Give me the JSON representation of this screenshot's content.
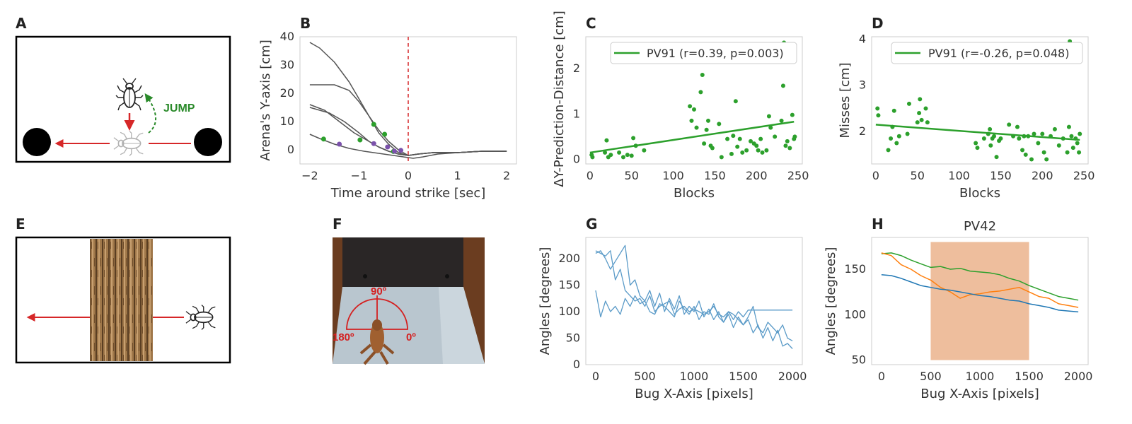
{
  "panels": {
    "A": {
      "letter": "A",
      "jump_label": "JUMP"
    },
    "B": {
      "letter": "B"
    },
    "C": {
      "letter": "C"
    },
    "D": {
      "letter": "D"
    },
    "E": {
      "letter": "E"
    },
    "F": {
      "letter": "F",
      "labels": {
        "top": "90º",
        "left": "180º",
        "right": "0º"
      }
    },
    "G": {
      "letter": "G"
    },
    "H": {
      "letter": "H"
    }
  },
  "colors": {
    "green": "#2ca02c",
    "blue": "#1f77b4",
    "orange": "#ff7f0e",
    "red": "#d62728",
    "purple": "#7b52ab",
    "gray": "#555555",
    "band": "#e8a87c"
  },
  "chart_data": [
    {
      "id": "B",
      "type": "line",
      "xlabel": "Time around strike [sec]",
      "ylabel": "Arena's Y-axis [cm]",
      "xlim": [
        -2.2,
        2.2
      ],
      "ylim": [
        -5,
        40
      ],
      "xticks": [
        -2,
        -1,
        0,
        1,
        2
      ],
      "yticks": [
        0,
        10,
        20,
        30,
        40
      ],
      "vline_x": 0,
      "series": [
        {
          "x": [
            -2,
            -1.8,
            -1.5,
            -1.2,
            -1,
            -0.8,
            -0.6,
            -0.4,
            -0.2,
            0,
            0.2,
            0.5,
            1,
            1.5,
            2
          ],
          "y": [
            38,
            36,
            31,
            24,
            18,
            12,
            6,
            2,
            -1,
            -2,
            -1.5,
            -1,
            -1,
            -0.5,
            -0.5
          ]
        },
        {
          "x": [
            -2,
            -1.5,
            -1.2,
            -1,
            -0.8,
            -0.6,
            -0.4,
            -0.2,
            0,
            0.2,
            0.5,
            1,
            1.5,
            2
          ],
          "y": [
            23,
            23,
            21,
            17,
            12,
            7,
            3,
            0,
            -2,
            -1.5,
            -1,
            -1,
            -0.5,
            -0.5
          ]
        },
        {
          "x": [
            -2,
            -1.7,
            -1.4,
            -1.1,
            -0.8,
            -0.6,
            -0.4,
            -0.2,
            0,
            0.2,
            0.5,
            1,
            1.5,
            2
          ],
          "y": [
            16,
            14,
            10,
            6,
            3,
            1,
            -0.5,
            -1.5,
            -2,
            -1.5,
            -1,
            -1,
            -0.5,
            -0.5
          ]
        },
        {
          "x": [
            -2,
            -1.6,
            -1.3,
            -1,
            -0.8,
            -0.6,
            -0.4,
            -0.2,
            0,
            0.2,
            0.5,
            1,
            1.5,
            2
          ],
          "y": [
            15,
            13,
            10,
            6,
            3,
            1,
            -0.5,
            -1.5,
            -2,
            -1.5,
            -1,
            -1,
            -0.5,
            -0.5
          ]
        },
        {
          "x": [
            -2,
            -1.8,
            -1.5,
            -1.2,
            -0.9,
            -0.7,
            -0.5,
            -0.3,
            -0.1,
            0.1,
            0.3,
            0.6,
            1,
            1.5,
            2
          ],
          "y": [
            5.5,
            4,
            2,
            0.5,
            -0.5,
            -1,
            -1.5,
            -2,
            -2.5,
            -3,
            -2.5,
            -1.5,
            -1,
            -0.5,
            -0.5
          ]
        }
      ],
      "green_points": [
        {
          "x": -1.72,
          "y": 3.8
        },
        {
          "x": -0.98,
          "y": 3.5
        },
        {
          "x": -0.7,
          "y": 9
        },
        {
          "x": -0.48,
          "y": 5.5
        },
        {
          "x": -0.3,
          "y": -0.6
        }
      ],
      "purple_points": [
        {
          "x": -1.4,
          "y": 2
        },
        {
          "x": -0.7,
          "y": 2.2
        },
        {
          "x": -0.42,
          "y": 1
        },
        {
          "x": -0.28,
          "y": -0.5
        },
        {
          "x": -0.15,
          "y": -0.2
        }
      ]
    },
    {
      "id": "C",
      "type": "scatter",
      "xlabel": "Blocks",
      "ylabel": "ΔY-Prediction-Distance [cm]",
      "xlim": [
        -5,
        255
      ],
      "ylim": [
        -0.1,
        2.7
      ],
      "xticks": [
        0,
        50,
        100,
        150,
        200,
        250
      ],
      "yticks": [
        0,
        1,
        2
      ],
      "legend": "PV91 (r=0.39, p=0.003)",
      "legend_loc": "upper right",
      "fit": {
        "x": [
          0,
          245
        ],
        "y": [
          0.15,
          0.83
        ]
      },
      "points": [
        [
          2,
          0.1
        ],
        [
          3,
          0.05
        ],
        [
          18,
          0.15
        ],
        [
          20,
          0.42
        ],
        [
          22,
          0.05
        ],
        [
          25,
          0.1
        ],
        [
          35,
          0.15
        ],
        [
          40,
          0.05
        ],
        [
          45,
          0.1
        ],
        [
          50,
          0.08
        ],
        [
          52,
          0.47
        ],
        [
          55,
          0.3
        ],
        [
          65,
          0.2
        ],
        [
          120,
          1.17
        ],
        [
          122,
          0.85
        ],
        [
          125,
          1.1
        ],
        [
          128,
          0.7
        ],
        [
          133,
          1.48
        ],
        [
          135,
          1.86
        ],
        [
          137,
          0.35
        ],
        [
          140,
          0.65
        ],
        [
          142,
          0.85
        ],
        [
          145,
          0.3
        ],
        [
          147,
          0.25
        ],
        [
          155,
          0.78
        ],
        [
          158,
          0.05
        ],
        [
          165,
          0.45
        ],
        [
          170,
          0.12
        ],
        [
          172,
          0.52
        ],
        [
          175,
          1.28
        ],
        [
          177,
          0.28
        ],
        [
          180,
          0.45
        ],
        [
          183,
          0.15
        ],
        [
          188,
          0.2
        ],
        [
          193,
          0.4
        ],
        [
          197,
          0.35
        ],
        [
          200,
          0.3
        ],
        [
          202,
          0.2
        ],
        [
          205,
          0.45
        ],
        [
          207,
          0.15
        ],
        [
          212,
          0.2
        ],
        [
          215,
          0.95
        ],
        [
          217,
          0.7
        ],
        [
          222,
          0.5
        ],
        [
          230,
          0.85
        ],
        [
          232,
          1.62
        ],
        [
          233,
          2.57
        ],
        [
          235,
          0.3
        ],
        [
          237,
          0.4
        ],
        [
          240,
          0.25
        ],
        [
          243,
          0.98
        ],
        [
          245,
          0.45
        ],
        [
          246,
          0.5
        ]
      ]
    },
    {
      "id": "D",
      "type": "scatter",
      "xlabel": "Blocks",
      "ylabel": "Misses [cm]",
      "xlim": [
        -5,
        255
      ],
      "ylim": [
        1.3,
        4.05
      ],
      "xticks": [
        0,
        50,
        100,
        150,
        200,
        250
      ],
      "yticks": [
        2,
        3,
        4
      ],
      "legend": "PV91 (r=-0.26, p=0.048)",
      "legend_loc": "upper right",
      "fit": {
        "x": [
          0,
          245
        ],
        "y": [
          2.15,
          1.82
        ]
      },
      "points": [
        [
          2,
          2.5
        ],
        [
          3,
          2.35
        ],
        [
          15,
          1.6
        ],
        [
          18,
          1.85
        ],
        [
          20,
          2.1
        ],
        [
          22,
          2.45
        ],
        [
          25,
          1.75
        ],
        [
          28,
          1.9
        ],
        [
          38,
          1.95
        ],
        [
          40,
          2.6
        ],
        [
          50,
          2.2
        ],
        [
          52,
          2.4
        ],
        [
          53,
          2.7
        ],
        [
          55,
          2.25
        ],
        [
          60,
          2.5
        ],
        [
          62,
          2.2
        ],
        [
          120,
          1.75
        ],
        [
          122,
          1.65
        ],
        [
          130,
          1.85
        ],
        [
          135,
          1.95
        ],
        [
          137,
          2.05
        ],
        [
          138,
          1.7
        ],
        [
          140,
          1.85
        ],
        [
          142,
          1.9
        ],
        [
          145,
          1.45
        ],
        [
          148,
          1.8
        ],
        [
          150,
          1.85
        ],
        [
          160,
          2.15
        ],
        [
          165,
          1.9
        ],
        [
          170,
          2.1
        ],
        [
          172,
          1.85
        ],
        [
          176,
          1.6
        ],
        [
          178,
          1.9
        ],
        [
          180,
          1.5
        ],
        [
          183,
          1.9
        ],
        [
          187,
          1.4
        ],
        [
          190,
          1.95
        ],
        [
          195,
          1.75
        ],
        [
          200,
          1.95
        ],
        [
          202,
          1.55
        ],
        [
          205,
          1.4
        ],
        [
          210,
          1.9
        ],
        [
          215,
          2.05
        ],
        [
          220,
          1.7
        ],
        [
          225,
          1.85
        ],
        [
          230,
          1.55
        ],
        [
          232,
          2.1
        ],
        [
          233,
          3.95
        ],
        [
          235,
          1.9
        ],
        [
          237,
          1.65
        ],
        [
          240,
          1.85
        ],
        [
          242,
          1.75
        ],
        [
          244,
          1.55
        ],
        [
          245,
          1.95
        ]
      ]
    },
    {
      "id": "G",
      "type": "line",
      "xlabel": "Bug X-Axis [pixels]",
      "ylabel": "Angles [degrees]",
      "xlim": [
        -100,
        2100
      ],
      "ylim": [
        0,
        240
      ],
      "xticks": [
        0,
        500,
        1000,
        1500,
        2000
      ],
      "yticks": [
        0,
        50,
        100,
        150,
        200
      ],
      "series": [
        {
          "x": [
            0,
            50,
            100,
            150,
            200,
            250,
            300,
            350,
            400,
            450,
            500,
            550,
            600,
            650,
            700,
            750,
            800,
            850,
            900,
            950,
            1000,
            1050,
            1100,
            1150,
            1200,
            1250,
            1300,
            1350,
            1400,
            1450,
            1500,
            1550,
            1600,
            1650,
            1700,
            1750,
            1800,
            1850,
            1900,
            1950,
            2000
          ],
          "y": [
            215,
            210,
            205,
            215,
            160,
            180,
            140,
            130,
            120,
            125,
            110,
            130,
            100,
            110,
            115,
            120,
            95,
            105,
            110,
            100,
            105,
            100,
            95,
            100,
            110,
            95,
            90,
            100,
            85,
            100,
            90,
            103,
            103,
            103,
            103,
            103,
            103,
            103,
            103,
            103,
            103
          ]
        },
        {
          "x": [
            0,
            50,
            100,
            150,
            200,
            250,
            300,
            350,
            400,
            450,
            500,
            550,
            600,
            650,
            700,
            750,
            800,
            850,
            900,
            950,
            1000,
            1050,
            1100,
            1150,
            1200,
            1250,
            1300,
            1350,
            1400,
            1450,
            1500,
            1550,
            1600,
            1650,
            1700,
            1750,
            1800,
            1850,
            1900,
            1950,
            2000
          ],
          "y": [
            140,
            90,
            120,
            100,
            110,
            95,
            125,
            110,
            130,
            115,
            120,
            100,
            95,
            115,
            110,
            100,
            90,
            120,
            105,
            95,
            110,
            85,
            100,
            95,
            115,
            90,
            80,
            100,
            95,
            85,
            75,
            90,
            110,
            70,
            60,
            80,
            70,
            60,
            75,
            50,
            45
          ]
        },
        {
          "x": [
            0,
            50,
            100,
            150,
            200,
            250,
            300,
            350,
            400,
            450,
            500,
            550,
            600,
            650,
            700,
            750,
            800,
            850,
            900,
            950,
            1000,
            1050,
            1100,
            1150,
            1200,
            1250,
            1300,
            1350,
            1400,
            1450,
            1500,
            1550,
            1600,
            1650,
            1700,
            1750,
            1800,
            1850,
            1900,
            1950,
            2000
          ],
          "y": [
            210,
            215,
            200,
            180,
            195,
            210,
            225,
            150,
            160,
            130,
            120,
            140,
            110,
            135,
            100,
            125,
            105,
            130,
            95,
            110,
            100,
            120,
            90,
            105,
            85,
            100,
            80,
            95,
            70,
            90,
            75,
            85,
            60,
            75,
            50,
            70,
            45,
            65,
            35,
            40,
            30
          ]
        }
      ]
    },
    {
      "id": "H",
      "type": "line",
      "title": "PV42",
      "xlabel": "Bug X-Axis [pixels]",
      "ylabel": "Angles [degrees]",
      "xlim": [
        -100,
        2100
      ],
      "ylim": [
        45,
        185
      ],
      "xticks": [
        0,
        500,
        1000,
        1500,
        2000
      ],
      "yticks": [
        50,
        100,
        150
      ],
      "band": {
        "x": [
          500,
          1500
        ],
        "y": [
          50,
          180
        ]
      },
      "series": [
        {
          "color": "green",
          "x": [
            0,
            100,
            200,
            300,
            400,
            500,
            600,
            700,
            800,
            900,
            1000,
            1100,
            1200,
            1300,
            1400,
            1500,
            1600,
            1700,
            1800,
            1900,
            2000
          ],
          "y": [
            167,
            168,
            165,
            160,
            156,
            152,
            153,
            150,
            151,
            148,
            147,
            146,
            144,
            140,
            137,
            132,
            128,
            124,
            120,
            118,
            116
          ]
        },
        {
          "color": "orange",
          "x": [
            0,
            100,
            200,
            300,
            400,
            500,
            600,
            700,
            800,
            900,
            1000,
            1100,
            1200,
            1300,
            1400,
            1500,
            1600,
            1700,
            1800,
            1900,
            2000
          ],
          "y": [
            168,
            165,
            155,
            150,
            143,
            138,
            130,
            125,
            118,
            122,
            123,
            125,
            126,
            128,
            130,
            125,
            120,
            118,
            112,
            110,
            108
          ]
        },
        {
          "color": "blue",
          "x": [
            0,
            100,
            200,
            300,
            400,
            500,
            600,
            700,
            800,
            900,
            1000,
            1100,
            1200,
            1300,
            1400,
            1500,
            1600,
            1700,
            1800,
            1900,
            2000
          ],
          "y": [
            144,
            143,
            140,
            136,
            132,
            130,
            128,
            127,
            125,
            123,
            121,
            120,
            118,
            116,
            115,
            112,
            110,
            108,
            105,
            104,
            103
          ]
        }
      ]
    }
  ]
}
